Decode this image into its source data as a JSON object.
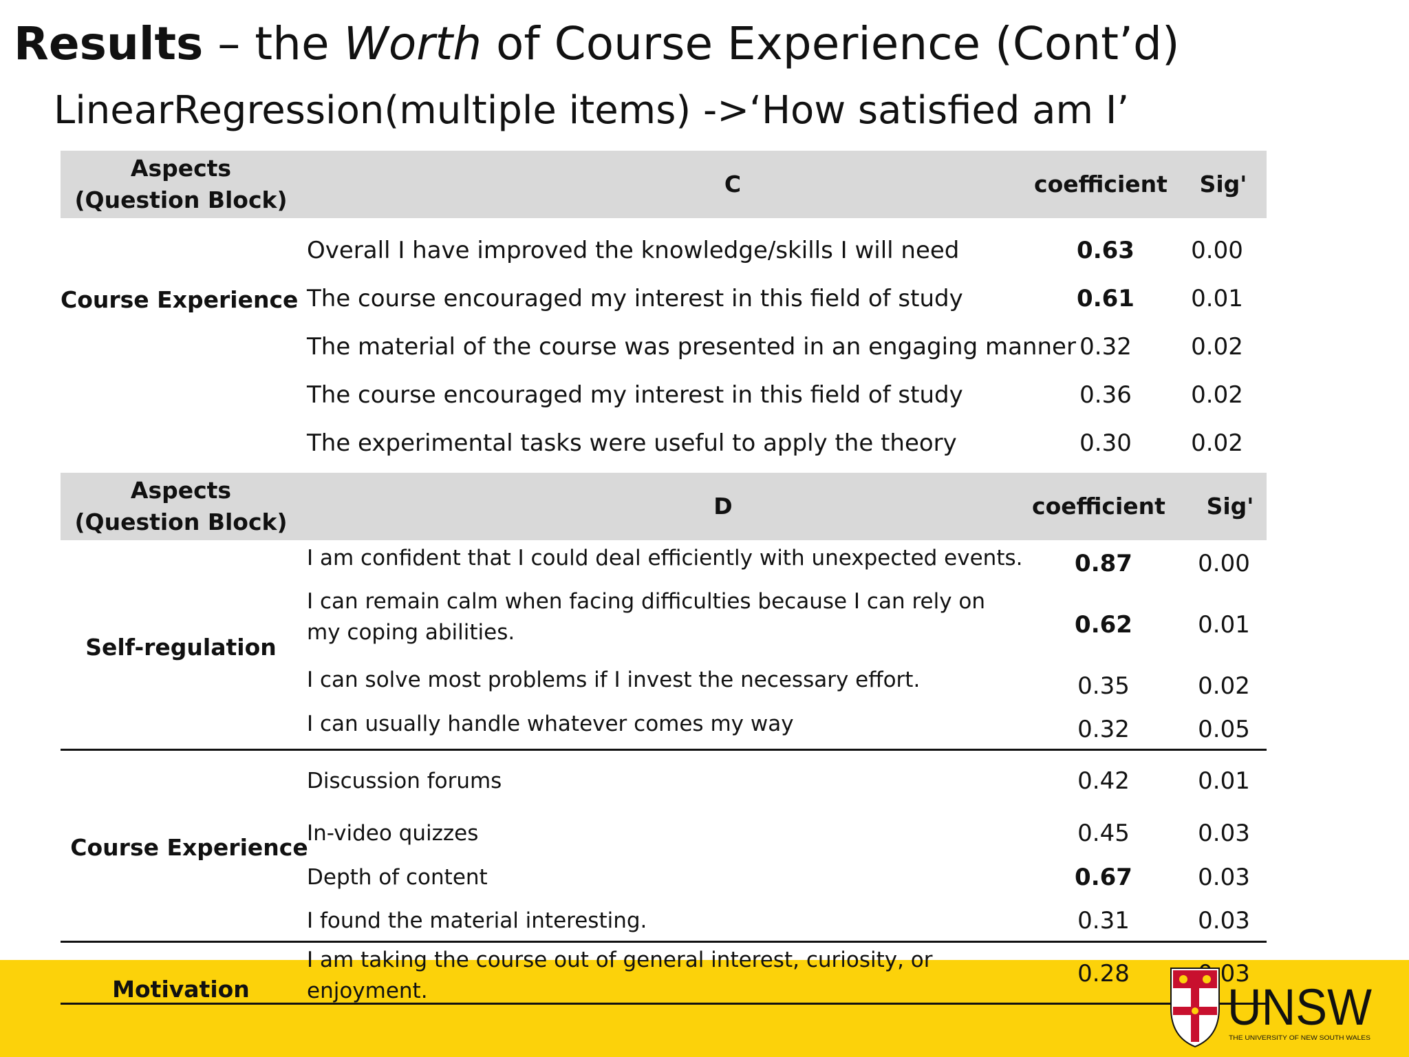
{
  "title": {
    "bold": "Results",
    "part1": " – the ",
    "italic": "Worth",
    "part2": " of Course Experience (Cont’d)"
  },
  "subtitle": "LinearRegression(multiple items) ->‘How satisfied am I’",
  "table1": {
    "headers": {
      "aspects": "Aspects\n(Question Block)",
      "block": "C",
      "coefficient": "coefficient",
      "sig": "Sig'"
    },
    "section": "Course Experience",
    "rows": [
      {
        "question": "Overall I have improved the knowledge/skills I will need",
        "coefficient": "0.63",
        "sig": "0.00",
        "bold": true
      },
      {
        "question": "The course encouraged my interest in this field of study",
        "coefficient": "0.61",
        "sig": "0.01",
        "bold": true
      },
      {
        "question": "The material of the course was presented in an engaging manner",
        "coefficient": "0.32",
        "sig": "0.02",
        "bold": false
      },
      {
        "question": "The course encouraged my interest in this field of study",
        "coefficient": "0.36",
        "sig": "0.02",
        "bold": false
      },
      {
        "question": "The experimental tasks were useful to apply the theory",
        "coefficient": "0.30",
        "sig": "0.02",
        "bold": false
      }
    ]
  },
  "table2": {
    "headers": {
      "aspects": "Aspects\n(Question Block)",
      "block": "D",
      "coefficient": "coefficient",
      "sig": "Sig'"
    },
    "groups": [
      {
        "section": "Self-regulation",
        "rows": [
          {
            "question": "I am confident that I could deal efficiently with unexpected events.",
            "coefficient": "0.87",
            "sig": "0.00",
            "bold": true
          },
          {
            "question": "I can remain calm when facing difficulties because I can rely on my coping abilities.",
            "coefficient": "0.62",
            "sig": "0.01",
            "bold": true
          },
          {
            "question": "I can solve most problems if I invest the necessary effort.",
            "coefficient": "0.35",
            "sig": "0.02",
            "bold": false
          },
          {
            "question": "I can usually handle whatever comes my way",
            "coefficient": "0.32",
            "sig": "0.05",
            "bold": false
          }
        ]
      },
      {
        "section": "Course Experience",
        "rows": [
          {
            "question": "Discussion forums",
            "coefficient": "0.42",
            "sig": "0.01",
            "bold": false
          },
          {
            "question": "In-video quizzes",
            "coefficient": "0.45",
            "sig": "0.03",
            "bold": false
          },
          {
            "question": "Depth of content",
            "coefficient": "0.67",
            "sig": "0.03",
            "bold": true
          },
          {
            "question": "I found the material interesting.",
            "coefficient": "0.31",
            "sig": "0.03",
            "bold": false
          }
        ]
      },
      {
        "section": "Motivation",
        "rows": [
          {
            "question": "I am taking the course out of general interest, curiosity, or enjoyment.",
            "coefficient": "0.28",
            "sig": "0.03",
            "bold": false
          }
        ]
      }
    ]
  },
  "logo": {
    "text": "UNSW",
    "tagline": "THE UNIVERSITY OF NEW SOUTH WALES"
  },
  "colors": {
    "header_fill": "#d9d9d9",
    "footer_band": "#fcd20a",
    "crest_red": "#c8102e"
  }
}
